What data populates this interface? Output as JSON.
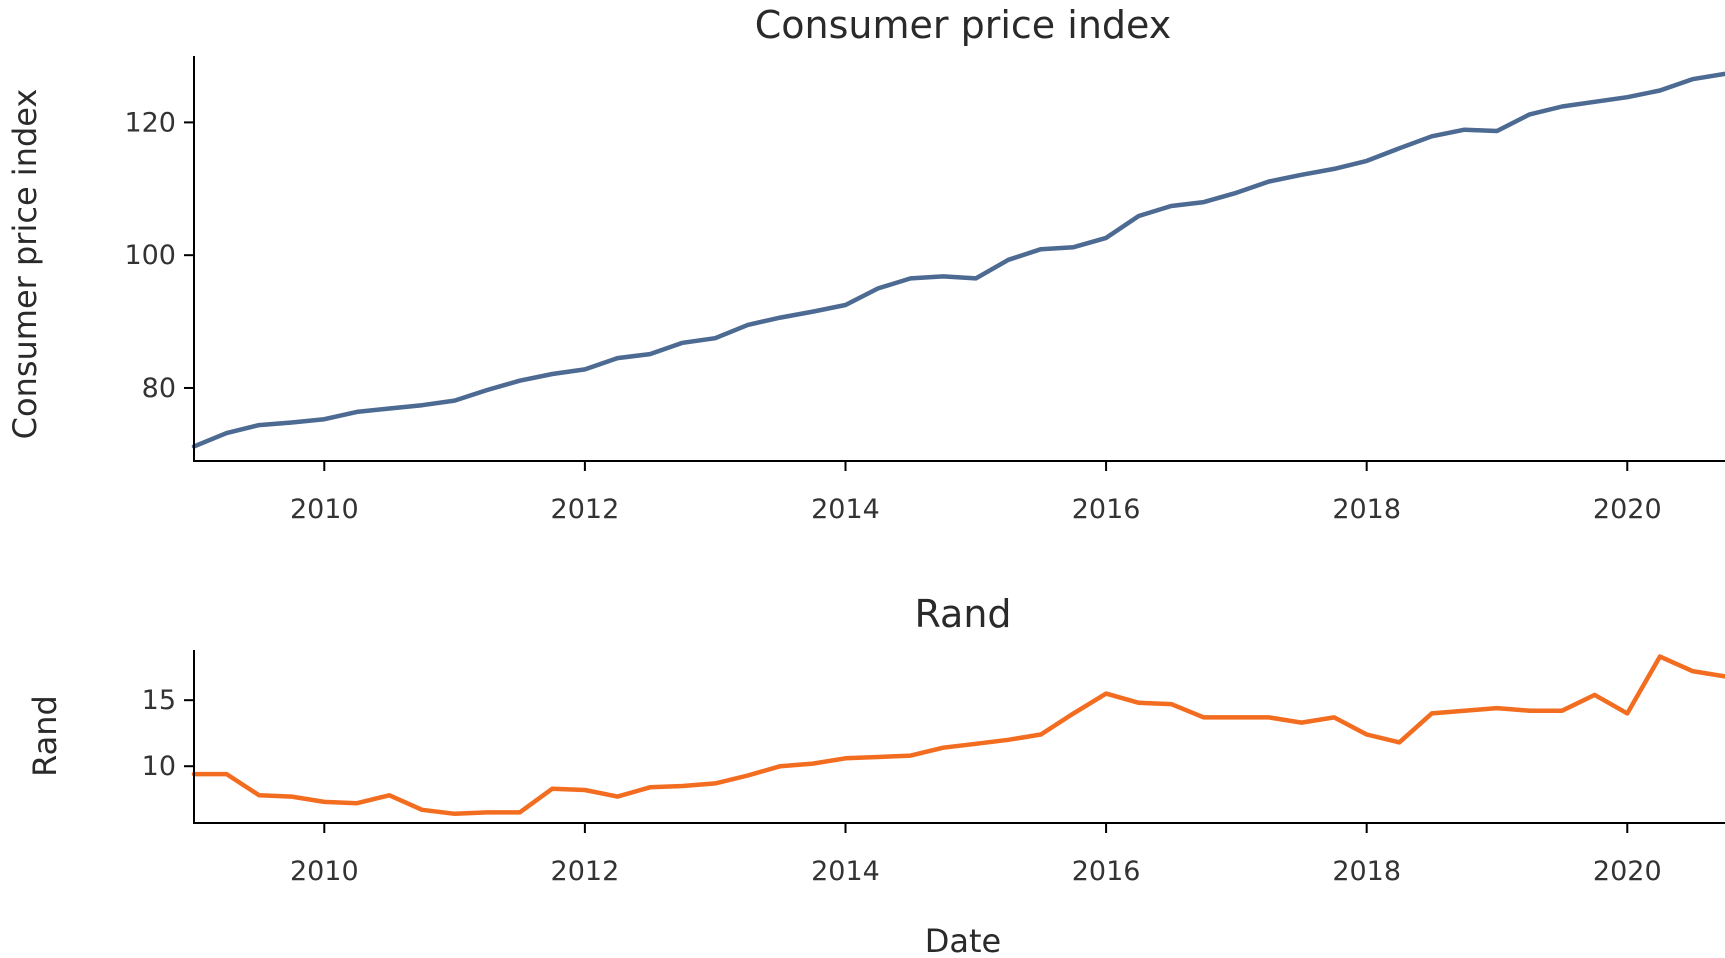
{
  "chart_data": [
    {
      "type": "line",
      "title": "Consumer price index",
      "xlabel": "",
      "ylabel": "Consumer price index",
      "xlim": [
        2009.0,
        2020.75
      ],
      "ylim": [
        69.0,
        130.0
      ],
      "xticks": [
        2010,
        2012,
        2014,
        2016,
        2018,
        2020
      ],
      "yticks": [
        80,
        100,
        120
      ],
      "grid": false,
      "color": "#4c6a92",
      "x": [
        2009.0,
        2009.25,
        2009.5,
        2009.75,
        2010.0,
        2010.25,
        2010.5,
        2010.75,
        2011.0,
        2011.25,
        2011.5,
        2011.75,
        2012.0,
        2012.25,
        2012.5,
        2012.75,
        2013.0,
        2013.25,
        2013.5,
        2013.75,
        2014.0,
        2014.25,
        2014.5,
        2014.75,
        2015.0,
        2015.25,
        2015.5,
        2015.75,
        2016.0,
        2016.25,
        2016.5,
        2016.75,
        2017.0,
        2017.25,
        2017.5,
        2017.75,
        2018.0,
        2018.25,
        2018.5,
        2018.75,
        2019.0,
        2019.25,
        2019.5,
        2019.75,
        2020.0,
        2020.25,
        2020.5,
        2020.75
      ],
      "values": [
        71.2,
        73.2,
        74.4,
        74.8,
        75.3,
        76.4,
        76.9,
        77.4,
        78.1,
        79.7,
        81.1,
        82.1,
        82.8,
        84.5,
        85.1,
        86.8,
        87.5,
        89.5,
        90.6,
        91.5,
        92.5,
        95.0,
        96.5,
        96.8,
        96.5,
        99.3,
        100.9,
        101.2,
        102.6,
        105.9,
        107.4,
        108.0,
        109.4,
        111.1,
        112.1,
        113.0,
        114.2,
        116.1,
        117.9,
        118.9,
        118.7,
        121.2,
        122.4,
        123.1,
        123.8,
        124.8,
        126.5,
        127.3
      ]
    },
    {
      "type": "line",
      "title": "Rand",
      "xlabel": "Date",
      "ylabel": "Rand",
      "xlim": [
        2009.0,
        2020.75
      ],
      "ylim": [
        5.7,
        18.8
      ],
      "xticks": [
        2010,
        2012,
        2014,
        2016,
        2018,
        2020
      ],
      "yticks": [
        10,
        15
      ],
      "grid": false,
      "color": "#f36d21",
      "x": [
        2009.0,
        2009.25,
        2009.5,
        2009.75,
        2010.0,
        2010.25,
        2010.5,
        2010.75,
        2011.0,
        2011.25,
        2011.5,
        2011.75,
        2012.0,
        2012.25,
        2012.5,
        2012.75,
        2013.0,
        2013.25,
        2013.5,
        2013.75,
        2014.0,
        2014.25,
        2014.5,
        2014.75,
        2015.0,
        2015.25,
        2015.5,
        2015.75,
        2016.0,
        2016.25,
        2016.5,
        2016.75,
        2017.0,
        2017.25,
        2017.5,
        2017.75,
        2018.0,
        2018.25,
        2018.5,
        2018.75,
        2019.0,
        2019.25,
        2019.5,
        2019.75,
        2020.0,
        2020.25,
        2020.5,
        2020.75
      ],
      "values": [
        9.4,
        9.4,
        7.8,
        7.7,
        7.3,
        7.2,
        7.8,
        6.7,
        6.4,
        6.5,
        6.5,
        8.3,
        8.2,
        7.7,
        8.4,
        8.5,
        8.7,
        9.3,
        10.0,
        10.2,
        10.6,
        10.7,
        10.8,
        11.4,
        11.7,
        12.0,
        12.4,
        14.0,
        15.5,
        14.8,
        14.7,
        13.7,
        13.7,
        13.7,
        13.3,
        13.7,
        12.4,
        11.8,
        14.0,
        14.2,
        14.4,
        14.2,
        14.2,
        15.4,
        14.0,
        18.3,
        17.2,
        16.8
      ]
    }
  ]
}
